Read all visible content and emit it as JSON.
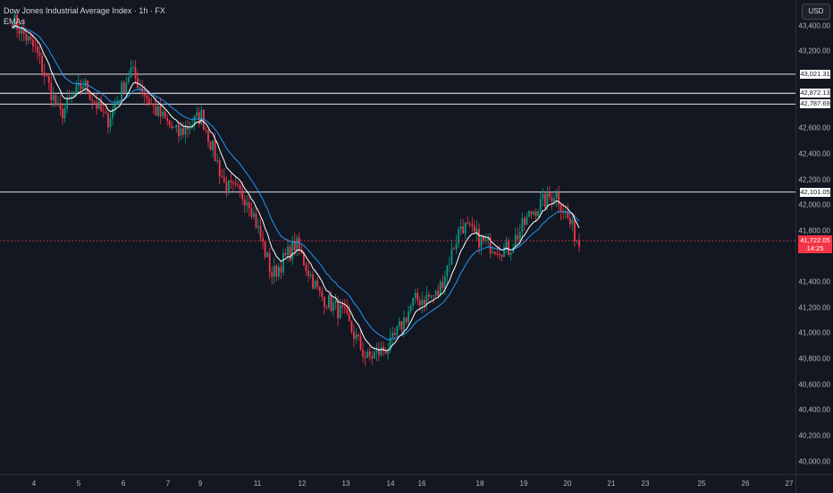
{
  "legend": {
    "title": "Dow Jones Industrial Average Index · 1h · FX",
    "indicator": "EMAs"
  },
  "currency_button": "USD",
  "colors": {
    "background": "#131722",
    "up": "#089981",
    "down": "#f23645",
    "ema_fast": "#ffffff",
    "ema_slow": "#2196f3",
    "level_line": "#ffffff",
    "last_price": "#f23645"
  },
  "price_axis": {
    "range": [
      39900,
      43600
    ],
    "ticks": [
      "43,400.00",
      "43,200.00",
      "42,600.00",
      "42,400.00",
      "42,200.00",
      "42,000.00",
      "41,800.00",
      "41,400.00",
      "41,200.00",
      "41,000.00",
      "40,800.00",
      "40,600.00",
      "40,400.00",
      "40,200.00",
      "40,000.00"
    ]
  },
  "levels": [
    {
      "value": 43021.31,
      "label": "43,021.31"
    },
    {
      "value": 42872.13,
      "label": "42,872.13"
    },
    {
      "value": 42787.69,
      "label": "42,787.69"
    },
    {
      "value": 42101.05,
      "label": "42,101.05"
    }
  ],
  "last_price": {
    "value": 41722.05,
    "label": "41,722.05",
    "countdown": "14:25"
  },
  "time_axis": {
    "labels": [
      "4",
      "5",
      "6",
      "7",
      "9",
      "11",
      "12",
      "13",
      "14",
      "16",
      "18",
      "19",
      "20",
      "21",
      "23",
      "25",
      "26",
      "27"
    ]
  },
  "chart_data": {
    "type": "candlestick",
    "x_labels": [
      "4",
      "5",
      "6",
      "7",
      "9",
      "11",
      "12",
      "13",
      "14",
      "16",
      "18",
      "19",
      "20",
      "21",
      "23",
      "25",
      "26",
      "27"
    ],
    "series": [
      {
        "name": "Dow Jones Industrial Average Index",
        "approx_path": [
          43450,
          43200,
          42700,
          42950,
          42650,
          43050,
          42750,
          42550,
          42700,
          42150,
          42050,
          41450,
          41700,
          41300,
          41150,
          40800,
          40900,
          41250,
          41300,
          41850,
          41700,
          41650,
          41950,
          42100,
          41700
        ]
      },
      {
        "name": "EMAs",
        "style": "fast"
      },
      {
        "name": "EMAs",
        "style": "slow"
      }
    ],
    "ylim": [
      39900,
      43600
    ]
  }
}
